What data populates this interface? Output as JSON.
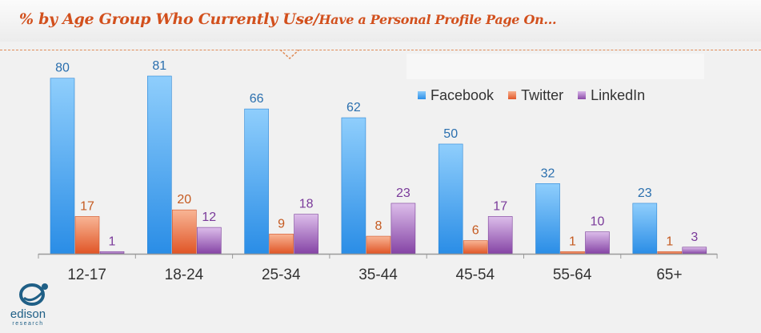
{
  "header": {
    "title_main": "% by Age Group Who Currently Use/",
    "title_small": "Have a Personal Profile Page On..."
  },
  "logo": {
    "word": "edison",
    "sub": "research"
  },
  "colors": {
    "facebook": "#4aa6ef",
    "twitter": "#ec7a4c",
    "linkedin": "#a46cc0",
    "title": "#d2501d"
  },
  "chart_data": {
    "type": "bar",
    "categories": [
      "12-17",
      "18-24",
      "25-34",
      "35-44",
      "45-54",
      "55-64",
      "65+"
    ],
    "series": [
      {
        "name": "Facebook",
        "values": [
          80,
          81,
          66,
          62,
          50,
          32,
          23
        ]
      },
      {
        "name": "Twitter",
        "values": [
          17,
          20,
          9,
          8,
          6,
          1,
          1
        ]
      },
      {
        "name": "LinkedIn",
        "values": [
          1,
          12,
          18,
          23,
          17,
          10,
          3
        ]
      }
    ],
    "ylim": [
      0,
      81
    ],
    "legend": "top-right",
    "grid": false
  }
}
